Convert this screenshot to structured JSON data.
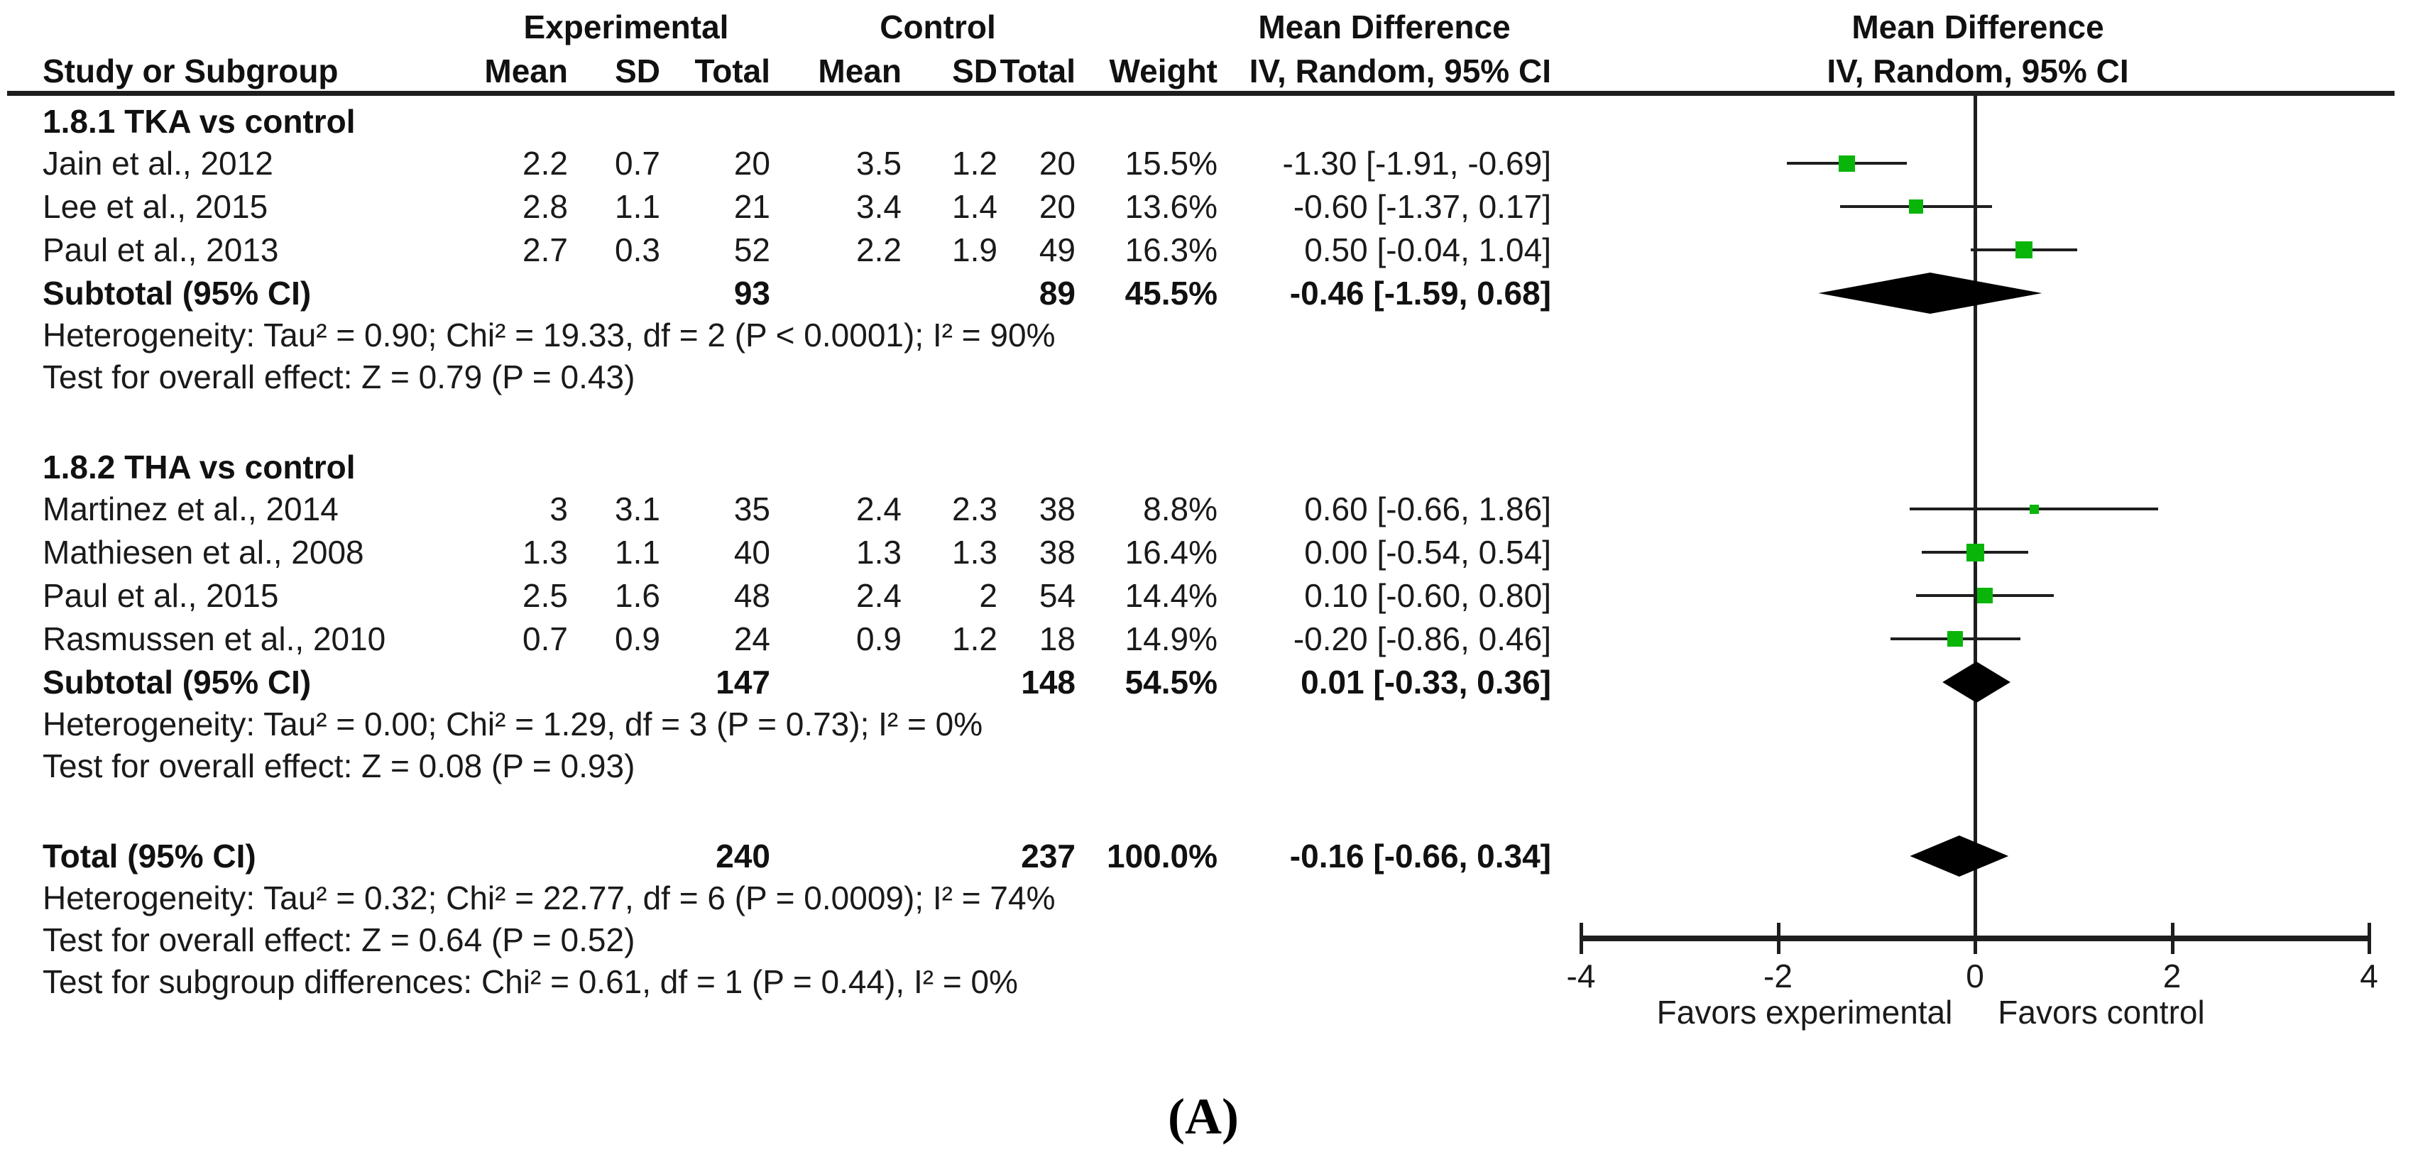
{
  "colors": {
    "marker_green": "#0ab50a",
    "line_black": "#1e1e1e",
    "text": "#1a1a1a"
  },
  "header": {
    "group1_title": "Experimental",
    "group2_title": "Control",
    "effect_title": "Mean Difference",
    "plot_title": "Mean Difference",
    "columns": {
      "study": "Study or Subgroup",
      "mean": "Mean",
      "sd": "SD",
      "total": "Total",
      "weight": "Weight",
      "ci": "IV, Random, 95% CI"
    },
    "plot_subtitle": "IV, Random, 95% CI"
  },
  "axis": {
    "min": -4,
    "max": 4,
    "ticks": [
      "-4",
      "-2",
      "0",
      "2",
      "4"
    ],
    "tick_values": [
      -4,
      -2,
      0,
      2,
      4
    ],
    "favors_left": "Favors experimental",
    "favors_right": "Favors control"
  },
  "panel_label": "(A)",
  "chart_data": {
    "type": "forest",
    "effect_measure": "Mean Difference, IV, Random, 95% CI",
    "xlim": [
      -4,
      4
    ],
    "subgroups": [
      {
        "title": "1.8.1 TKA vs control",
        "studies": [
          {
            "label": "Jain et al., 2012",
            "exp_mean": "2.2",
            "exp_sd": "0.7",
            "exp_total": "20",
            "ctrl_mean": "3.5",
            "ctrl_sd": "1.2",
            "ctrl_total": "20",
            "weight": "15.5%",
            "ci_text": "-1.30 [-1.91, -0.69]",
            "md": -1.3,
            "lo": -1.91,
            "hi": -0.69,
            "weight_pct": 15.5
          },
          {
            "label": "Lee et al., 2015",
            "exp_mean": "2.8",
            "exp_sd": "1.1",
            "exp_total": "21",
            "ctrl_mean": "3.4",
            "ctrl_sd": "1.4",
            "ctrl_total": "20",
            "weight": "13.6%",
            "ci_text": "-0.60 [-1.37, 0.17]",
            "md": -0.6,
            "lo": -1.37,
            "hi": 0.17,
            "weight_pct": 13.6
          },
          {
            "label": "Paul et al., 2013",
            "exp_mean": "2.7",
            "exp_sd": "0.3",
            "exp_total": "52",
            "ctrl_mean": "2.2",
            "ctrl_sd": "1.9",
            "ctrl_total": "49",
            "weight": "16.3%",
            "ci_text": "0.50 [-0.04, 1.04]",
            "md": 0.5,
            "lo": -0.04,
            "hi": 1.04,
            "weight_pct": 16.3
          }
        ],
        "subtotal": {
          "label": "Subtotal (95% CI)",
          "exp_total": "93",
          "ctrl_total": "89",
          "weight": "45.5%",
          "ci_text": "-0.46 [-1.59, 0.68]",
          "md": -0.46,
          "lo": -1.59,
          "hi": 0.68
        },
        "heterogeneity": "Heterogeneity: Tau² = 0.90; Chi² = 19.33, df = 2 (P < 0.0001); I² = 90%",
        "overall_effect": "Test for overall effect: Z = 0.79 (P = 0.43)"
      },
      {
        "title": "1.8.2 THA vs control",
        "studies": [
          {
            "label": "Martinez et al., 2014",
            "exp_mean": "3",
            "exp_sd": "3.1",
            "exp_total": "35",
            "ctrl_mean": "2.4",
            "ctrl_sd": "2.3",
            "ctrl_total": "38",
            "weight": "8.8%",
            "ci_text": "0.60 [-0.66, 1.86]",
            "md": 0.6,
            "lo": -0.66,
            "hi": 1.86,
            "weight_pct": 8.8
          },
          {
            "label": "Mathiesen et al., 2008",
            "exp_mean": "1.3",
            "exp_sd": "1.1",
            "exp_total": "40",
            "ctrl_mean": "1.3",
            "ctrl_sd": "1.3",
            "ctrl_total": "38",
            "weight": "16.4%",
            "ci_text": "0.00 [-0.54, 0.54]",
            "md": 0.0,
            "lo": -0.54,
            "hi": 0.54,
            "weight_pct": 16.4
          },
          {
            "label": "Paul et al., 2015",
            "exp_mean": "2.5",
            "exp_sd": "1.6",
            "exp_total": "48",
            "ctrl_mean": "2.4",
            "ctrl_sd": "2",
            "ctrl_total": "54",
            "weight": "14.4%",
            "ci_text": "0.10 [-0.60, 0.80]",
            "md": 0.1,
            "lo": -0.6,
            "hi": 0.8,
            "weight_pct": 14.4
          },
          {
            "label": "Rasmussen et al., 2010",
            "exp_mean": "0.7",
            "exp_sd": "0.9",
            "exp_total": "24",
            "ctrl_mean": "0.9",
            "ctrl_sd": "1.2",
            "ctrl_total": "18",
            "weight": "14.9%",
            "ci_text": "-0.20 [-0.86, 0.46]",
            "md": -0.2,
            "lo": -0.86,
            "hi": 0.46,
            "weight_pct": 14.9
          }
        ],
        "subtotal": {
          "label": "Subtotal (95% CI)",
          "exp_total": "147",
          "ctrl_total": "148",
          "weight": "54.5%",
          "ci_text": "0.01 [-0.33, 0.36]",
          "md": 0.01,
          "lo": -0.33,
          "hi": 0.36
        },
        "heterogeneity": "Heterogeneity: Tau² = 0.00; Chi² = 1.29, df = 3 (P = 0.73); I² = 0%",
        "overall_effect": "Test for overall effect: Z = 0.08 (P = 0.93)"
      }
    ],
    "total": {
      "label": "Total (95% CI)",
      "exp_total": "240",
      "ctrl_total": "237",
      "weight": "100.0%",
      "ci_text": "-0.16 [-0.66, 0.34]",
      "md": -0.16,
      "lo": -0.66,
      "hi": 0.34
    },
    "total_heterogeneity": "Heterogeneity: Tau² = 0.32; Chi² = 22.77, df = 6 (P = 0.0009); I² = 74%",
    "total_overall_effect": "Test for overall effect: Z = 0.64 (P = 0.52)",
    "subgroup_differences": "Test for subgroup differences: Chi² = 0.61, df = 1 (P = 0.44), I² = 0%"
  }
}
